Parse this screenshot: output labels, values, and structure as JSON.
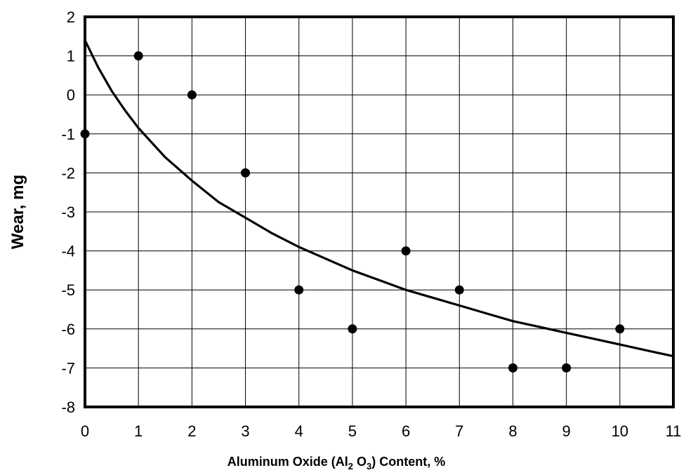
{
  "chart_data": {
    "type": "scatter",
    "title": "",
    "xlabel": "Aluminum Oxide (Al2 O3) Content, %",
    "xlabel_parts": {
      "prefix": "Aluminum Oxide (Al",
      "sub1": "2",
      "mid": " O",
      "sub2": "3",
      "suffix": ") Content, %"
    },
    "ylabel": "Wear, mg",
    "xlim": [
      0,
      11
    ],
    "ylim": [
      -8,
      2
    ],
    "xticks": [
      0,
      1,
      2,
      3,
      4,
      5,
      6,
      7,
      8,
      9,
      10,
      11
    ],
    "yticks": [
      2,
      1,
      0,
      -1,
      -2,
      -3,
      -4,
      -5,
      -6,
      -7,
      -8
    ],
    "grid": true,
    "legend": "none",
    "series": [
      {
        "type": "scatter",
        "points": [
          {
            "x": 0,
            "y": -1
          },
          {
            "x": 1,
            "y": 1
          },
          {
            "x": 2,
            "y": 0
          },
          {
            "x": 3,
            "y": -2
          },
          {
            "x": 4,
            "y": -5
          },
          {
            "x": 5,
            "y": -6
          },
          {
            "x": 6,
            "y": -4
          },
          {
            "x": 7,
            "y": -5
          },
          {
            "x": 8,
            "y": -7
          },
          {
            "x": 9,
            "y": -7
          },
          {
            "x": 10,
            "y": -6
          }
        ]
      },
      {
        "type": "line",
        "points": [
          {
            "x": 0,
            "y": 1.4
          },
          {
            "x": 0.25,
            "y": 0.7
          },
          {
            "x": 0.5,
            "y": 0.1
          },
          {
            "x": 0.75,
            "y": -0.4
          },
          {
            "x": 1,
            "y": -0.85
          },
          {
            "x": 1.5,
            "y": -1.6
          },
          {
            "x": 2,
            "y": -2.2
          },
          {
            "x": 2.5,
            "y": -2.75
          },
          {
            "x": 3,
            "y": -3.15
          },
          {
            "x": 3.5,
            "y": -3.55
          },
          {
            "x": 4,
            "y": -3.9
          },
          {
            "x": 4.5,
            "y": -4.2
          },
          {
            "x": 5,
            "y": -4.5
          },
          {
            "x": 5.5,
            "y": -4.75
          },
          {
            "x": 6,
            "y": -5.0
          },
          {
            "x": 6.5,
            "y": -5.2
          },
          {
            "x": 7,
            "y": -5.4
          },
          {
            "x": 7.5,
            "y": -5.6
          },
          {
            "x": 8,
            "y": -5.8
          },
          {
            "x": 8.5,
            "y": -5.95
          },
          {
            "x": 9,
            "y": -6.1
          },
          {
            "x": 9.5,
            "y": -6.25
          },
          {
            "x": 10,
            "y": -6.4
          },
          {
            "x": 10.5,
            "y": -6.55
          },
          {
            "x": 11,
            "y": -6.7
          }
        ]
      }
    ],
    "colors": {
      "marker": "#000000",
      "line": "#000000",
      "grid": "#000000",
      "frame": "#000000"
    }
  }
}
